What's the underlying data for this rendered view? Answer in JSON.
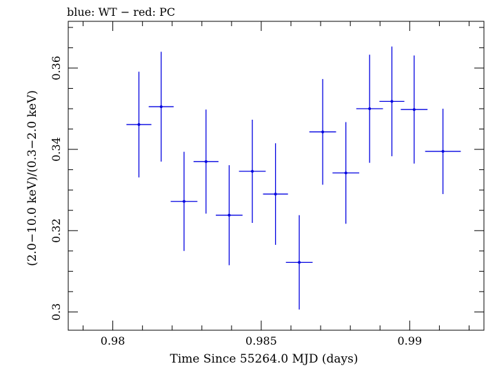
{
  "chart_data": {
    "type": "scatter",
    "title": "blue: WT − red: PC",
    "xlabel": "Time Since 55264.0 MJD (days)",
    "ylabel": "(2.0−10.0 keV)/(0.3−2.0 keV)",
    "xlim": [
      0.9785,
      0.9925
    ],
    "ylim": [
      0.2955,
      0.3715
    ],
    "x_ticks": [
      0.98,
      0.985,
      0.99
    ],
    "x_tick_labels": [
      "0.98",
      "0.985",
      "0.99"
    ],
    "y_ticks": [
      0.3,
      0.32,
      0.34,
      0.36
    ],
    "y_tick_labels": [
      "0.3",
      "0.32",
      "0.34",
      "0.36"
    ],
    "grid": false,
    "series": [
      {
        "color": "#0000e0",
        "points": [
          {
            "x": 0.98088,
            "y": 0.3461,
            "xerr": 0.00042,
            "yerr": 0.013
          },
          {
            "x": 0.98163,
            "y": 0.3505,
            "xerr": 0.00042,
            "yerr": 0.0135
          },
          {
            "x": 0.9824,
            "y": 0.3272,
            "xerr": 0.00045,
            "yerr": 0.0122
          },
          {
            "x": 0.98314,
            "y": 0.337,
            "xerr": 0.00042,
            "yerr": 0.0128
          },
          {
            "x": 0.98392,
            "y": 0.3238,
            "xerr": 0.00045,
            "yerr": 0.0123
          },
          {
            "x": 0.9847,
            "y": 0.3346,
            "xerr": 0.00045,
            "yerr": 0.0127
          },
          {
            "x": 0.98548,
            "y": 0.329,
            "xerr": 0.00042,
            "yerr": 0.0125
          },
          {
            "x": 0.98628,
            "y": 0.3122,
            "xerr": 0.00045,
            "yerr": 0.0116
          },
          {
            "x": 0.98707,
            "y": 0.3443,
            "xerr": 0.00045,
            "yerr": 0.013
          },
          {
            "x": 0.98785,
            "y": 0.3342,
            "xerr": 0.00045,
            "yerr": 0.0125
          },
          {
            "x": 0.98865,
            "y": 0.35,
            "xerr": 0.00045,
            "yerr": 0.0133
          },
          {
            "x": 0.9894,
            "y": 0.3518,
            "xerr": 0.00042,
            "yerr": 0.0135
          },
          {
            "x": 0.99015,
            "y": 0.3498,
            "xerr": 0.00045,
            "yerr": 0.0133
          },
          {
            "x": 0.99112,
            "y": 0.3395,
            "xerr": 0.0006,
            "yerr": 0.0105
          }
        ]
      }
    ]
  }
}
